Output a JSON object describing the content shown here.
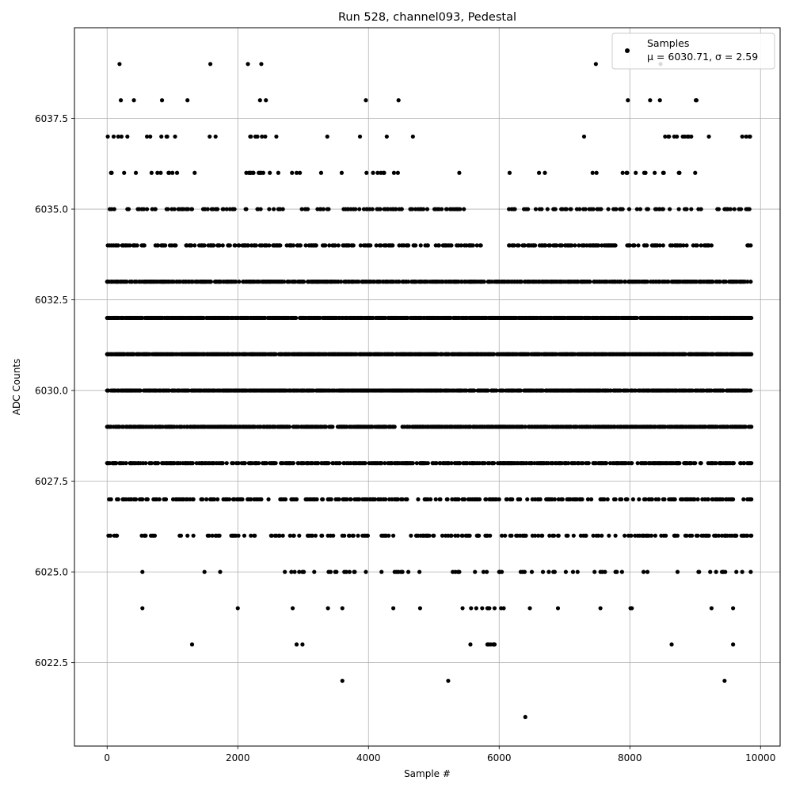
{
  "chart_data": {
    "type": "scatter",
    "title": "Run 528, channel093, Pedestal",
    "xlabel": "Sample #",
    "ylabel": "ADC Counts",
    "xlim": [
      -500,
      10300
    ],
    "ylim": [
      6020.2,
      6040.0
    ],
    "x_ticks": [
      0,
      2000,
      4000,
      6000,
      8000,
      10000
    ],
    "y_ticks": [
      6022.5,
      6025.0,
      6027.5,
      6030.0,
      6032.5,
      6035.0,
      6037.5
    ],
    "x_tick_labels": [
      "0",
      "2000",
      "4000",
      "6000",
      "8000",
      "10000"
    ],
    "y_tick_labels": [
      "6022.5",
      "6025.0",
      "6027.5",
      "6030.0",
      "6032.5",
      "6035.0",
      "6037.5"
    ],
    "grid": true,
    "legend": {
      "placement": "top-right",
      "entry_name": "Samples",
      "entry_stats": "μ = 6030.71, σ = 2.59"
    },
    "marker_color": "#000000",
    "n_samples": 9856,
    "level_ranges": [
      {
        "y": 6039,
        "ranges": [
          [
            180,
            200
          ],
          [
            1570,
            1590
          ],
          [
            2140,
            2170
          ],
          [
            2350,
            2370
          ],
          [
            7470,
            7490
          ],
          [
            8460,
            8520
          ]
        ],
        "density": 0.35
      },
      {
        "y": 6038,
        "ranges": [
          [
            200,
            220
          ],
          [
            400,
            420
          ],
          [
            780,
            960
          ],
          [
            1220,
            1240
          ],
          [
            2080,
            2120
          ],
          [
            2340,
            2460
          ],
          [
            3950,
            3970
          ],
          [
            4450,
            4470
          ],
          [
            7960,
            7980
          ],
          [
            8300,
            8320
          ],
          [
            8400,
            8520
          ],
          [
            9000,
            9040
          ]
        ],
        "density": 0.12
      },
      {
        "y": 6037,
        "ranges": [
          [
            0,
            420
          ],
          [
            570,
            1150
          ],
          [
            1540,
            1660
          ],
          [
            1860,
            2640
          ],
          [
            3360,
            3380
          ],
          [
            3840,
            3960
          ],
          [
            4250,
            4320
          ],
          [
            4670,
            4690
          ],
          [
            7290,
            7310
          ],
          [
            7420,
            7520
          ],
          [
            7930,
            8000
          ],
          [
            8330,
            9020
          ],
          [
            9200,
            9220
          ],
          [
            9720,
            9840
          ]
        ],
        "density": 0.1
      },
      {
        "y": 6036,
        "ranges": [
          [
            40,
            1140
          ],
          [
            1330,
            1350
          ],
          [
            2040,
            2720
          ],
          [
            2800,
            2990
          ],
          [
            3260,
            3290
          ],
          [
            3580,
            3600
          ],
          [
            3870,
            4480
          ],
          [
            5020,
            5080
          ],
          [
            5380,
            5400
          ],
          [
            6150,
            6170
          ],
          [
            6380,
            6440
          ],
          [
            6600,
            6700
          ],
          [
            6900,
            7120
          ],
          [
            7430,
            7500
          ],
          [
            7850,
            7990
          ],
          [
            8080,
            8100
          ],
          [
            8220,
            8920
          ],
          [
            8980,
            9040
          ]
        ],
        "density": 0.12
      },
      {
        "y": 6035,
        "ranges": [
          [
            0,
            1300
          ],
          [
            1440,
            1960
          ],
          [
            2100,
            2700
          ],
          [
            2940,
            3400
          ],
          [
            3600,
            4900
          ],
          [
            5000,
            5500
          ],
          [
            6100,
            9860
          ]
        ],
        "density": 0.22
      },
      {
        "y": 6034,
        "ranges": [
          [
            0,
            5720
          ],
          [
            6050,
            9280
          ],
          [
            9730,
            9860
          ]
        ],
        "density": 0.32
      },
      {
        "y": 6033,
        "ranges": [
          [
            0,
            9860
          ]
        ],
        "density": 0.55
      },
      {
        "y": 6032,
        "ranges": [
          [
            0,
            9860
          ]
        ],
        "density": 0.75
      },
      {
        "y": 6031,
        "ranges": [
          [
            0,
            9860
          ]
        ],
        "density": 0.75
      },
      {
        "y": 6030,
        "ranges": [
          [
            0,
            9860
          ]
        ],
        "density": 0.72
      },
      {
        "y": 6029,
        "ranges": [
          [
            0,
            9860
          ]
        ],
        "density": 0.6
      },
      {
        "y": 6028,
        "ranges": [
          [
            0,
            9860
          ]
        ],
        "density": 0.45
      },
      {
        "y": 6027,
        "ranges": [
          [
            0,
            9860
          ]
        ],
        "density": 0.3
      },
      {
        "y": 6026,
        "ranges": [
          [
            0,
            180
          ],
          [
            500,
            750
          ],
          [
            1100,
            1800
          ],
          [
            1900,
            2100
          ],
          [
            2200,
            2300
          ],
          [
            2500,
            4000
          ],
          [
            4200,
            4400
          ],
          [
            4600,
            9860
          ]
        ],
        "density": 0.22
      },
      {
        "y": 6025,
        "ranges": [
          [
            540,
            620
          ],
          [
            1480,
            1500
          ],
          [
            1680,
            1740
          ],
          [
            1860,
            1940
          ],
          [
            2680,
            3200
          ],
          [
            3350,
            4200
          ],
          [
            4400,
            6200
          ],
          [
            6300,
            7200
          ],
          [
            7400,
            7950
          ],
          [
            8200,
            8300
          ],
          [
            8680,
            8900
          ],
          [
            9050,
            9860
          ]
        ],
        "density": 0.12
      },
      {
        "y": 6024,
        "ranges": [
          [
            530,
            550
          ],
          [
            1990,
            2010
          ],
          [
            2830,
            2850
          ],
          [
            3370,
            3390
          ],
          [
            3590,
            3610
          ],
          [
            4370,
            4390
          ],
          [
            4780,
            4800
          ],
          [
            5100,
            5180
          ],
          [
            5430,
            5450
          ],
          [
            5550,
            6110
          ],
          [
            6460,
            6480
          ],
          [
            6890,
            6910
          ],
          [
            7540,
            7560
          ],
          [
            7880,
            8040
          ],
          [
            9220,
            9290
          ],
          [
            9580,
            9720
          ]
        ],
        "density": 0.08
      },
      {
        "y": 6023,
        "ranges": [
          [
            1290,
            1310
          ],
          [
            2890,
            2910
          ],
          [
            2980,
            3000
          ],
          [
            5560,
            5620
          ],
          [
            5820,
            5930
          ],
          [
            8630,
            8650
          ],
          [
            9570,
            9590
          ]
        ],
        "density": 0.25
      },
      {
        "y": 6022,
        "ranges": [
          [
            3590,
            3610
          ],
          [
            5210,
            5230
          ],
          [
            9440,
            9460
          ]
        ],
        "density": 1.0
      },
      {
        "y": 6021,
        "ranges": [
          [
            6390,
            6410
          ]
        ],
        "density": 1.0
      }
    ]
  }
}
